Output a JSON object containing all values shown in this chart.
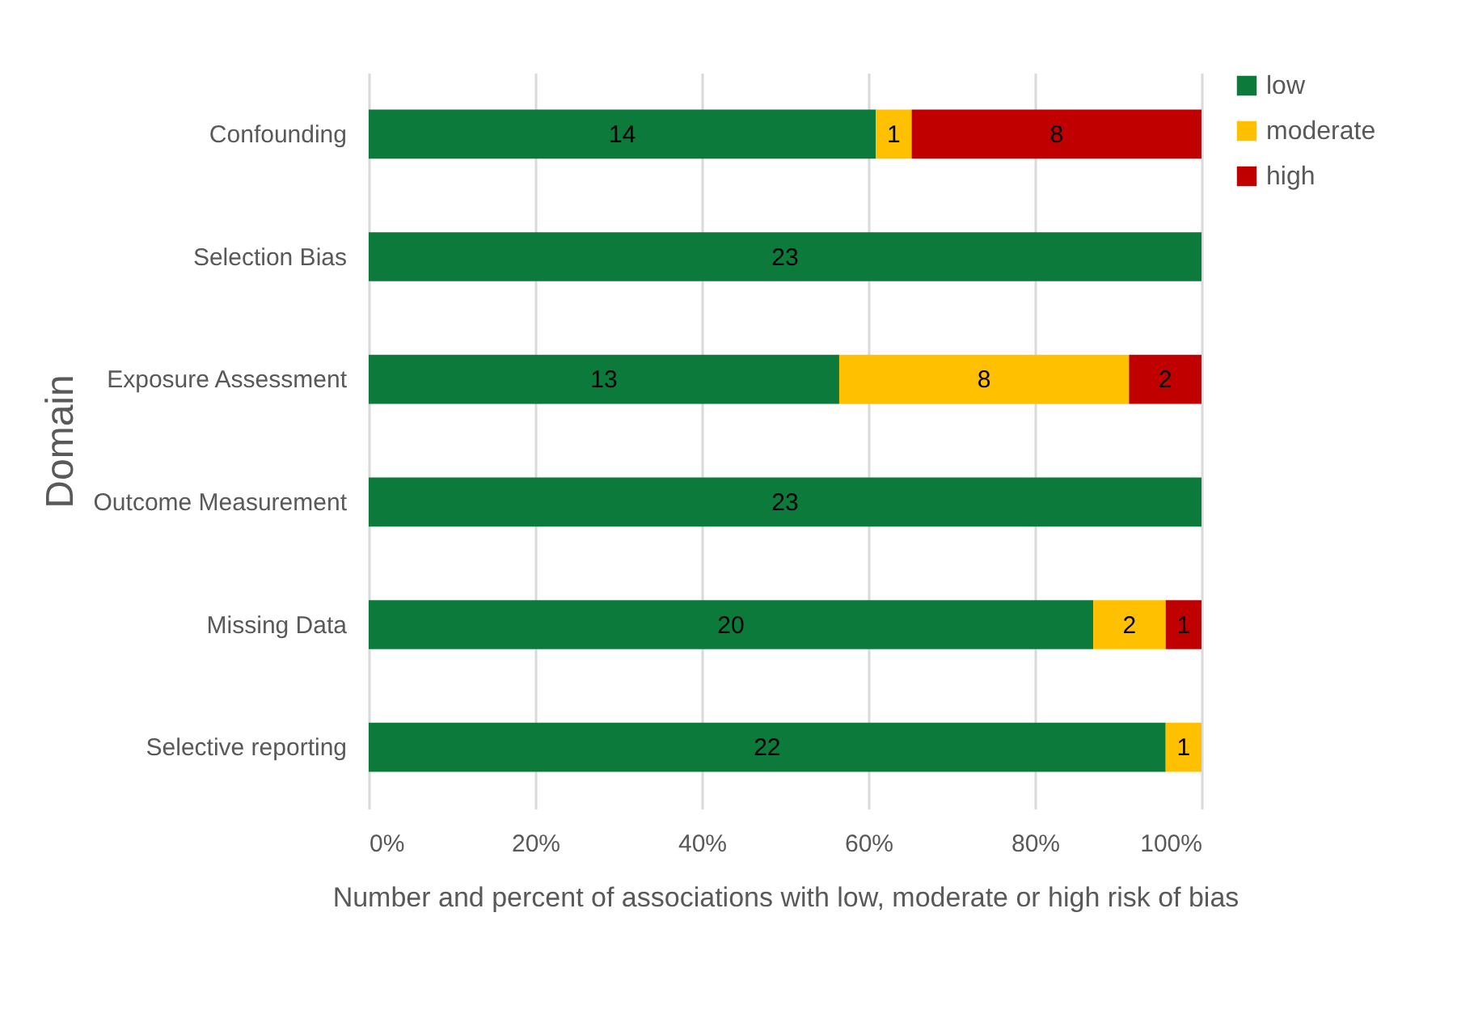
{
  "chart_data": {
    "type": "bar",
    "orientation": "horizontal",
    "stacked": true,
    "xlabel": "Number and percent of associations with low, moderate or high risk of bias",
    "ylabel": "Domain",
    "categories": [
      "Confounding",
      "Selection Bias",
      "Exposure Assessment",
      "Outcome Measurement",
      "Missing Data",
      "Selective reporting"
    ],
    "series": [
      {
        "name": "low",
        "color": "#0b7a3a",
        "values": [
          60.9,
          100,
          56.5,
          100,
          87.0,
          95.7
        ]
      },
      {
        "name": "moderate",
        "color": "#ffc000",
        "values": [
          4.3,
          null,
          34.8,
          null,
          8.7,
          4.3
        ]
      },
      {
        "name": "high",
        "color": "#c00000",
        "values": [
          34.8,
          null,
          8.7,
          null,
          4.3,
          null
        ]
      }
    ],
    "annotations": [
      "14",
      "1",
      "8",
      "23",
      "13",
      "8",
      "2",
      "23",
      "20",
      "2",
      "1",
      "22",
      "1"
    ],
    "xlim": [
      0,
      100
    ],
    "xticks": [
      {
        "value": 0,
        "label": "0%"
      },
      {
        "value": 20,
        "label": "20%"
      },
      {
        "value": 40,
        "label": "40%"
      },
      {
        "value": 60,
        "label": "60%"
      },
      {
        "value": 80,
        "label": "80%"
      },
      {
        "value": 100,
        "label": "100%"
      }
    ],
    "grid": "x",
    "legend": "right"
  }
}
